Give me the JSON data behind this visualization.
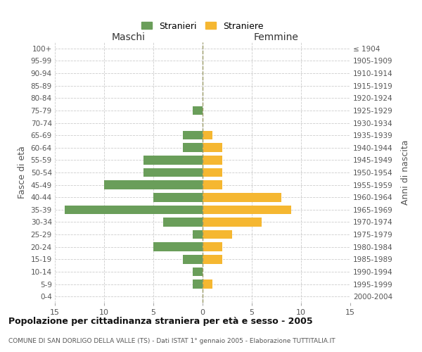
{
  "age_groups": [
    "100+",
    "95-99",
    "90-94",
    "85-89",
    "80-84",
    "75-79",
    "70-74",
    "65-69",
    "60-64",
    "55-59",
    "50-54",
    "45-49",
    "40-44",
    "35-39",
    "30-34",
    "25-29",
    "20-24",
    "15-19",
    "10-14",
    "5-9",
    "0-4"
  ],
  "birth_years": [
    "≤ 1904",
    "1905-1909",
    "1910-1914",
    "1915-1919",
    "1920-1924",
    "1925-1929",
    "1930-1934",
    "1935-1939",
    "1940-1944",
    "1945-1949",
    "1950-1954",
    "1955-1959",
    "1960-1964",
    "1965-1969",
    "1970-1974",
    "1975-1979",
    "1980-1984",
    "1985-1989",
    "1990-1994",
    "1995-1999",
    "2000-2004"
  ],
  "males": [
    0,
    0,
    0,
    0,
    0,
    1,
    0,
    2,
    2,
    6,
    6,
    10,
    5,
    14,
    4,
    1,
    5,
    2,
    1,
    1,
    0
  ],
  "females": [
    0,
    0,
    0,
    0,
    0,
    0,
    0,
    1,
    2,
    2,
    2,
    2,
    8,
    9,
    6,
    3,
    2,
    2,
    0,
    1,
    0
  ],
  "male_color": "#6a9e5a",
  "female_color": "#f5b731",
  "background_color": "#ffffff",
  "grid_color": "#cccccc",
  "title1": "Popolazione per cittadinanza straniera per età e sesso - 2005",
  "title2": "COMUNE DI SAN DORLIGO DELLA VALLE (TS) - Dati ISTAT 1° gennaio 2005 - Elaborazione TUTTITALIA.IT",
  "xlabel_left": "Maschi",
  "xlabel_right": "Femmine",
  "ylabel_left": "Fasce di età",
  "ylabel_right": "Anni di nascita",
  "legend_male": "Stranieri",
  "legend_female": "Straniere",
  "xlim": 15
}
